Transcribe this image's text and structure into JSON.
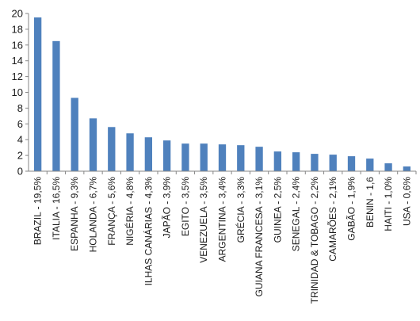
{
  "chart_data": {
    "type": "bar",
    "categories": [
      "BRAZIL - 19,5%",
      "ITALIA - 16,5%",
      "ESPANHA - 9,3%",
      "HOLANDA - 6,7%",
      "FRANÇA - 5,6%",
      "NIGÉRIA - 4,8%",
      "ILHAS CANÁRIAS - 4,3%",
      "JAPÃO - 3,9%",
      "EGITO - 3,5%",
      "VENEZUELA - 3,5%",
      "ARGENTINA - 3,4%",
      "GRÉCIA - 3,3%",
      "GUIANA FRANCESA - 3,1%",
      "GUINEA - 2,5%",
      "SENEGAL - 2,4%",
      "TRINIDAD & TOBAGO - 2,2%",
      "CAMARÕES - 2,1%",
      "GABÃO - 1,9%",
      "BENIN - 1,6",
      "HAITI - 1,0%",
      "USA - 0,6%"
    ],
    "values": [
      19.5,
      16.5,
      9.3,
      6.7,
      5.6,
      4.8,
      4.3,
      3.9,
      3.5,
      3.5,
      3.4,
      3.3,
      3.1,
      2.5,
      2.4,
      2.2,
      2.1,
      1.9,
      1.6,
      1.0,
      0.6
    ],
    "ylim": [
      0,
      20
    ],
    "yticks": [
      "0",
      "2",
      "4",
      "6",
      "8",
      "10",
      "12",
      "14",
      "16",
      "18",
      "20"
    ],
    "grid": false,
    "legend": "none",
    "title": "",
    "xlabel": "",
    "ylabel": "",
    "colors": {
      "bar": "#4f81bd",
      "axis": "#868686",
      "text": "#1a1a1a"
    }
  }
}
